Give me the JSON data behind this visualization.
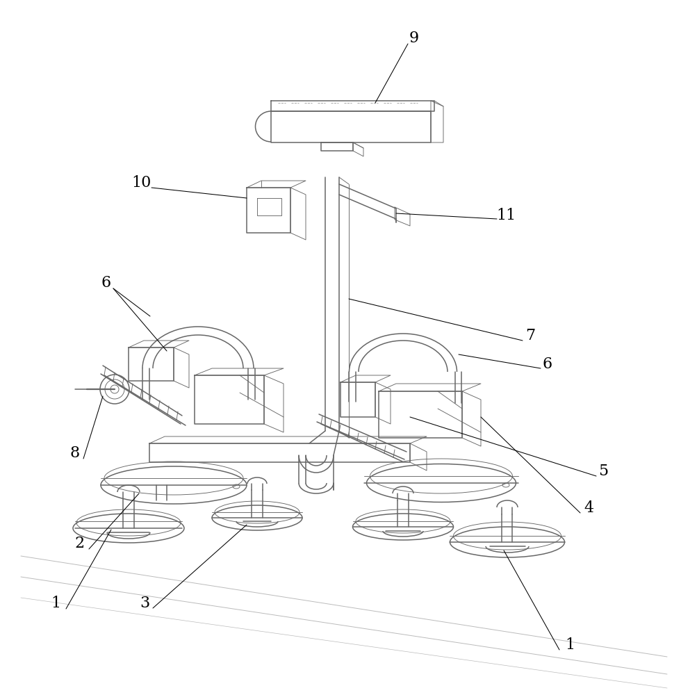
{
  "bg_color": "#ffffff",
  "line_color": "#666666",
  "label_color": "#000000",
  "lw": 1.1,
  "tlw": 0.65,
  "fig_width": 9.8,
  "fig_height": 10.0
}
